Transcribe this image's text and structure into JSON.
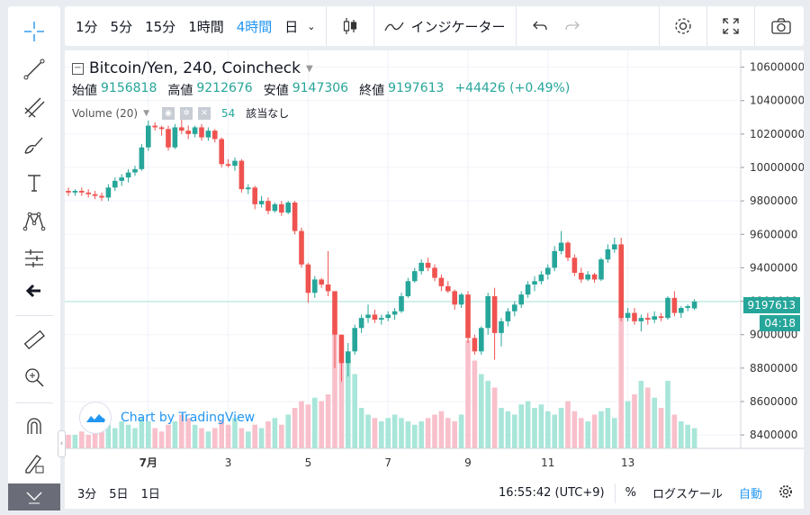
{
  "toolbar": {
    "intervals": [
      "1分",
      "5分",
      "15分",
      "1時間",
      "4時間",
      "日"
    ],
    "active_interval": "4時間",
    "indicators_label": "インジケーター"
  },
  "legend": {
    "title": "Bitcoin/Yen, 240, Coincheck",
    "open_label": "始値",
    "open": "9156818",
    "high_label": "高値",
    "high": "9212676",
    "low_label": "安値",
    "low": "9147306",
    "close_label": "終値",
    "close": "9197613",
    "change": "+44426 (+0.49%)",
    "volume_label": "Volume (20)",
    "volume_value": "54",
    "volume_na": "該当なし"
  },
  "price_tag": {
    "price": "9197613",
    "countdown": "04:18"
  },
  "watermark": "Chart by TradingView",
  "bottombar": {
    "ranges": [
      "3分",
      "5日",
      "1日"
    ],
    "time": "16:55:42 (UTC+9)",
    "percent": "%",
    "log": "ログスケール",
    "auto": "自動"
  },
  "colors": {
    "up": "#26a69a",
    "down": "#ef5350",
    "up_vol": "#a8e6d9",
    "down_vol": "#f8c0cb",
    "accent": "#2196f3"
  },
  "chart_data": {
    "type": "candlestick",
    "y_ticks": [
      8400000,
      8600000,
      8800000,
      9000000,
      9200000,
      9400000,
      9600000,
      9800000,
      10000000,
      10200000,
      10400000,
      10600000
    ],
    "ylim": [
      8320000,
      10700000
    ],
    "x_ticks": [
      "7月",
      "3",
      "5",
      "7",
      "9",
      "11",
      "13"
    ],
    "candles": [
      [
        9860000,
        9880000,
        9830000,
        9850000
      ],
      [
        9850000,
        9870000,
        9830000,
        9860000
      ],
      [
        9860000,
        9880000,
        9830000,
        9850000
      ],
      [
        9850000,
        9870000,
        9820000,
        9840000
      ],
      [
        9840000,
        9860000,
        9810000,
        9830000
      ],
      [
        9830000,
        9850000,
        9800000,
        9820000
      ],
      [
        9820000,
        9900000,
        9800000,
        9880000
      ],
      [
        9880000,
        9940000,
        9860000,
        9920000
      ],
      [
        9920000,
        9960000,
        9890000,
        9940000
      ],
      [
        9940000,
        9990000,
        9910000,
        9970000
      ],
      [
        9970000,
        10010000,
        9950000,
        9990000
      ],
      [
        9990000,
        10140000,
        9980000,
        10120000
      ],
      [
        10120000,
        10280000,
        10100000,
        10250000
      ],
      [
        10250000,
        10270000,
        10220000,
        10240000
      ],
      [
        10240000,
        10250000,
        10190000,
        10230000
      ],
      [
        10230000,
        10250000,
        10100000,
        10120000
      ],
      [
        10120000,
        10260000,
        10110000,
        10240000
      ],
      [
        10240000,
        10310000,
        10200000,
        10220000
      ],
      [
        10220000,
        10250000,
        10170000,
        10200000
      ],
      [
        10200000,
        10250000,
        10180000,
        10240000
      ],
      [
        10240000,
        10260000,
        10160000,
        10180000
      ],
      [
        10180000,
        10240000,
        10160000,
        10220000
      ],
      [
        10220000,
        10230000,
        10150000,
        10170000
      ],
      [
        10170000,
        10180000,
        10000000,
        10020000
      ],
      [
        10020000,
        10050000,
        10000000,
        10010000
      ],
      [
        10010000,
        10060000,
        9980000,
        10040000
      ],
      [
        10040000,
        10050000,
        9850000,
        9870000
      ],
      [
        9870000,
        9900000,
        9840000,
        9880000
      ],
      [
        9880000,
        9890000,
        9750000,
        9780000
      ],
      [
        9780000,
        9830000,
        9760000,
        9800000
      ],
      [
        9800000,
        9820000,
        9720000,
        9740000
      ],
      [
        9740000,
        9790000,
        9730000,
        9780000
      ],
      [
        9780000,
        9800000,
        9710000,
        9730000
      ],
      [
        9730000,
        9800000,
        9720000,
        9790000
      ],
      [
        9790000,
        9800000,
        9600000,
        9620000
      ],
      [
        9620000,
        9640000,
        9400000,
        9420000
      ],
      [
        9420000,
        9430000,
        9190000,
        9250000
      ],
      [
        9250000,
        9350000,
        9220000,
        9330000
      ],
      [
        9330000,
        9340000,
        9280000,
        9300000
      ],
      [
        9300000,
        9500000,
        9230000,
        9260000
      ],
      [
        9260000,
        9250000,
        8800000,
        9000000
      ],
      [
        9000000,
        9000000,
        8720000,
        8830000
      ],
      [
        8830000,
        8950000,
        8750000,
        8900000
      ],
      [
        8900000,
        9060000,
        8880000,
        9040000
      ],
      [
        9040000,
        9120000,
        9010000,
        9100000
      ],
      [
        9100000,
        9180000,
        9070000,
        9120000
      ],
      [
        9120000,
        9150000,
        9070000,
        9090000
      ],
      [
        9090000,
        9120000,
        9060000,
        9100000
      ],
      [
        9100000,
        9140000,
        9080000,
        9120000
      ],
      [
        9120000,
        9160000,
        9090000,
        9140000
      ],
      [
        9140000,
        9250000,
        9130000,
        9230000
      ],
      [
        9230000,
        9340000,
        9220000,
        9320000
      ],
      [
        9320000,
        9400000,
        9310000,
        9380000
      ],
      [
        9380000,
        9450000,
        9360000,
        9430000
      ],
      [
        9430000,
        9460000,
        9380000,
        9400000
      ],
      [
        9400000,
        9420000,
        9320000,
        9340000
      ],
      [
        9340000,
        9360000,
        9260000,
        9290000
      ],
      [
        9290000,
        9320000,
        9250000,
        9260000
      ],
      [
        9260000,
        9270000,
        9150000,
        9180000
      ],
      [
        9180000,
        9250000,
        9160000,
        9240000
      ],
      [
        9240000,
        9260000,
        8950000,
        8980000
      ],
      [
        8980000,
        9000000,
        8880000,
        8900000
      ],
      [
        8900000,
        9050000,
        8880000,
        9040000
      ],
      [
        9040000,
        9250000,
        9000000,
        9230000
      ],
      [
        9230000,
        9280000,
        8850000,
        9010000
      ],
      [
        9010000,
        9100000,
        8930000,
        9080000
      ],
      [
        9080000,
        9160000,
        9050000,
        9140000
      ],
      [
        9140000,
        9200000,
        9110000,
        9180000
      ],
      [
        9180000,
        9260000,
        9160000,
        9240000
      ],
      [
        9240000,
        9320000,
        9220000,
        9300000
      ],
      [
        9300000,
        9350000,
        9260000,
        9320000
      ],
      [
        9320000,
        9380000,
        9300000,
        9360000
      ],
      [
        9360000,
        9420000,
        9330000,
        9400000
      ],
      [
        9400000,
        9530000,
        9380000,
        9500000
      ],
      [
        9500000,
        9620000,
        9480000,
        9550000
      ],
      [
        9550000,
        9560000,
        9440000,
        9460000
      ],
      [
        9460000,
        9480000,
        9350000,
        9370000
      ],
      [
        9370000,
        9400000,
        9310000,
        9330000
      ],
      [
        9330000,
        9380000,
        9320000,
        9360000
      ],
      [
        9360000,
        9370000,
        9310000,
        9330000
      ],
      [
        9330000,
        9460000,
        9320000,
        9450000
      ],
      [
        9450000,
        9540000,
        9430000,
        9510000
      ],
      [
        9510000,
        9580000,
        9490000,
        9540000
      ],
      [
        9540000,
        9580000,
        9080000,
        9100000
      ],
      [
        9100000,
        9160000,
        9080000,
        9130000
      ],
      [
        9130000,
        9160000,
        9060000,
        9080000
      ],
      [
        9080000,
        9120000,
        9020000,
        9100000
      ],
      [
        9100000,
        9130000,
        9060000,
        9090000
      ],
      [
        9090000,
        9140000,
        9070000,
        9110000
      ],
      [
        9110000,
        9130000,
        9080000,
        9100000
      ],
      [
        9100000,
        9230000,
        9090000,
        9220000
      ],
      [
        9220000,
        9260000,
        9110000,
        9130000
      ],
      [
        9130000,
        9170000,
        9100000,
        9160000
      ],
      [
        9160000,
        9180000,
        9140000,
        9170000
      ],
      [
        9157000,
        9213000,
        9147000,
        9198000
      ]
    ],
    "volumes": [
      4,
      4,
      5,
      4,
      6,
      5,
      7,
      6,
      8,
      7,
      6,
      9,
      8,
      6,
      5,
      7,
      8,
      10,
      9,
      7,
      6,
      5,
      6,
      8,
      7,
      9,
      6,
      5,
      7,
      6,
      8,
      9,
      7,
      10,
      12,
      14,
      13,
      15,
      14,
      16,
      35,
      30,
      26,
      22,
      12,
      10,
      9,
      8,
      9,
      10,
      9,
      8,
      7,
      8,
      9,
      10,
      11,
      9,
      8,
      10,
      32,
      26,
      22,
      20,
      18,
      12,
      11,
      10,
      13,
      14,
      12,
      13,
      11,
      10,
      12,
      14,
      11,
      9,
      8,
      10,
      11,
      12,
      9,
      40,
      14,
      16,
      20,
      18,
      15,
      12,
      20,
      10,
      8,
      7,
      6
    ],
    "current_price": 9197613
  }
}
